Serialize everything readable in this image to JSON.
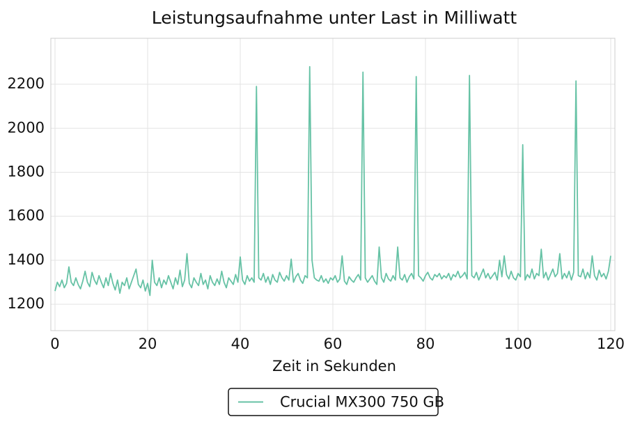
{
  "chart_data": {
    "type": "line",
    "title": "Leistungsaufnahme unter Last in Milliwatt",
    "xlabel": "Zeit in Sekunden",
    "x": [
      0,
      0.5,
      1,
      1.5,
      2,
      2.5,
      3,
      3.5,
      4,
      4.5,
      5,
      5.5,
      6,
      6.5,
      7,
      7.5,
      8,
      8.5,
      9,
      9.5,
      10,
      10.5,
      11,
      11.5,
      12,
      12.5,
      13,
      13.5,
      14,
      14.5,
      15,
      15.5,
      16,
      16.5,
      17,
      17.5,
      18,
      18.5,
      19,
      19.5,
      20,
      20.5,
      21,
      21.5,
      22,
      22.5,
      23,
      23.5,
      24,
      24.5,
      25,
      25.5,
      26,
      26.5,
      27,
      27.5,
      28,
      28.5,
      29,
      29.5,
      30,
      30.5,
      31,
      31.5,
      32,
      32.5,
      33,
      33.5,
      34,
      34.5,
      35,
      35.5,
      36,
      36.5,
      37,
      37.5,
      38,
      38.5,
      39,
      39.5,
      40,
      40.5,
      41,
      41.5,
      42,
      42.5,
      43,
      43.5,
      44,
      44.5,
      45,
      45.5,
      46,
      46.5,
      47,
      47.5,
      48,
      48.5,
      49,
      49.5,
      50,
      50.5,
      51,
      51.5,
      52,
      52.5,
      53,
      53.5,
      54,
      54.5,
      55,
      55.5,
      56,
      56.5,
      57,
      57.5,
      58,
      58.5,
      59,
      59.5,
      60,
      60.5,
      61,
      61.5,
      62,
      62.5,
      63,
      63.5,
      64,
      64.5,
      65,
      65.5,
      66,
      66.5,
      67,
      67.5,
      68,
      68.5,
      69,
      69.5,
      70,
      70.5,
      71,
      71.5,
      72,
      72.5,
      73,
      73.5,
      74,
      74.5,
      75,
      75.5,
      76,
      76.5,
      77,
      77.5,
      78,
      78.5,
      79,
      79.5,
      80,
      80.5,
      81,
      81.5,
      82,
      82.5,
      83,
      83.5,
      84,
      84.5,
      85,
      85.5,
      86,
      86.5,
      87,
      87.5,
      88,
      88.5,
      89,
      89.5,
      90,
      90.5,
      91,
      91.5,
      92,
      92.5,
      93,
      93.5,
      94,
      94.5,
      95,
      95.5,
      96,
      96.5,
      97,
      97.5,
      98,
      98.5,
      99,
      99.5,
      100,
      100.5,
      101,
      101.5,
      102,
      102.5,
      103,
      103.5,
      104,
      104.5,
      105,
      105.5,
      106,
      106.5,
      107,
      107.5,
      108,
      108.5,
      109,
      109.5,
      110,
      110.5,
      111,
      111.5,
      112,
      112.5,
      113,
      113.5,
      114,
      114.5,
      115,
      115.5,
      116,
      116.5,
      117,
      117.5,
      118,
      118.5,
      119,
      119.5,
      120
    ],
    "series": [
      {
        "name": "Crucial MX300 750 GB",
        "color": "#66c2a5",
        "values": [
          1260,
          1300,
          1280,
          1310,
          1275,
          1295,
          1370,
          1300,
          1285,
          1320,
          1290,
          1270,
          1305,
          1350,
          1300,
          1280,
          1345,
          1310,
          1290,
          1330,
          1300,
          1275,
          1320,
          1285,
          1340,
          1295,
          1265,
          1310,
          1250,
          1300,
          1285,
          1320,
          1270,
          1300,
          1330,
          1360,
          1290,
          1275,
          1310,
          1260,
          1295,
          1240,
          1400,
          1300,
          1285,
          1320,
          1275,
          1310,
          1290,
          1330,
          1300,
          1270,
          1320,
          1290,
          1355,
          1280,
          1310,
          1430,
          1295,
          1275,
          1320,
          1300,
          1285,
          1340,
          1290,
          1310,
          1270,
          1330,
          1300,
          1285,
          1315,
          1290,
          1350,
          1300,
          1275,
          1320,
          1305,
          1290,
          1335,
          1300,
          1415,
          1310,
          1290,
          1330,
          1305,
          1320,
          1300,
          2190,
          1320,
          1310,
          1340,
          1300,
          1325,
          1290,
          1335,
          1310,
          1300,
          1345,
          1320,
          1305,
          1330,
          1310,
          1405,
          1300,
          1325,
          1340,
          1310,
          1295,
          1330,
          1320,
          2280,
          1400,
          1320,
          1310,
          1305,
          1330,
          1300,
          1315,
          1295,
          1320,
          1310,
          1330,
          1300,
          1315,
          1420,
          1305,
          1290,
          1325,
          1310,
          1300,
          1320,
          1335,
          1310,
          2255,
          1320,
          1300,
          1315,
          1330,
          1305,
          1290,
          1460,
          1320,
          1300,
          1340,
          1315,
          1305,
          1330,
          1310,
          1460,
          1320,
          1310,
          1335,
          1300,
          1325,
          1340,
          1315,
          2235,
          1330,
          1320,
          1305,
          1330,
          1345,
          1320,
          1310,
          1335,
          1325,
          1340,
          1315,
          1330,
          1320,
          1340,
          1310,
          1335,
          1325,
          1350,
          1320,
          1330,
          1345,
          1315,
          2240,
          1330,
          1320,
          1345,
          1310,
          1335,
          1360,
          1320,
          1340,
          1315,
          1330,
          1345,
          1310,
          1400,
          1325,
          1420,
          1335,
          1315,
          1350,
          1320,
          1310,
          1340,
          1325,
          1925,
          1310,
          1335,
          1320,
          1360,
          1315,
          1340,
          1330,
          1450,
          1320,
          1345,
          1310,
          1335,
          1360,
          1325,
          1340,
          1430,
          1315,
          1340,
          1320,
          1350,
          1310,
          1345,
          2215,
          1330,
          1325,
          1360,
          1315,
          1345,
          1320,
          1420,
          1330,
          1310,
          1355,
          1325,
          1340,
          1315,
          1350,
          1420
        ]
      }
    ],
    "xlim": [
      -0.9,
      120.9
    ],
    "xticks": [
      0,
      20,
      40,
      60,
      80,
      100,
      120
    ],
    "ylim": [
      1080,
      2409
    ],
    "yticks": [
      1200,
      1400,
      1600,
      1800,
      2000,
      2200
    ],
    "grid": true,
    "legend": "lower center"
  }
}
